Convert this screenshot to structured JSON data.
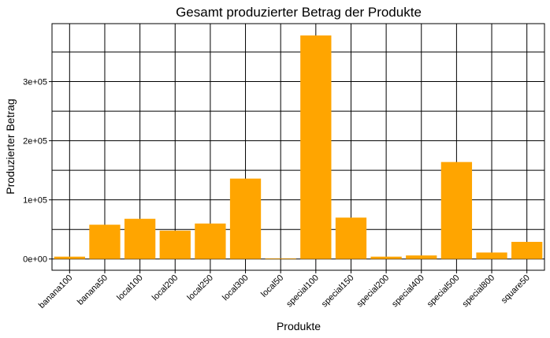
{
  "chart_data": {
    "type": "bar",
    "title": "Gesamt produzierter Betrag der Produkte",
    "xlabel": "Produkte",
    "ylabel": "Produzierter Betrag",
    "categories": [
      "banana100",
      "banana50",
      "local100",
      "local200",
      "local250",
      "local300",
      "local50",
      "special100",
      "special150",
      "special200",
      "special400",
      "special500",
      "special800",
      "square50"
    ],
    "values": [
      4000,
      58000,
      68000,
      48000,
      60000,
      136000,
      1000,
      378000,
      70000,
      4000,
      6000,
      164000,
      11000,
      29000
    ],
    "y_ticks": [
      0,
      100000,
      200000,
      300000
    ],
    "y_tick_labels": [
      "0e+00",
      "1e+05",
      "2e+05",
      "3e+05"
    ],
    "ylim": [
      -19000,
      398000
    ],
    "bar_color": "#FFA500",
    "grid": true
  }
}
